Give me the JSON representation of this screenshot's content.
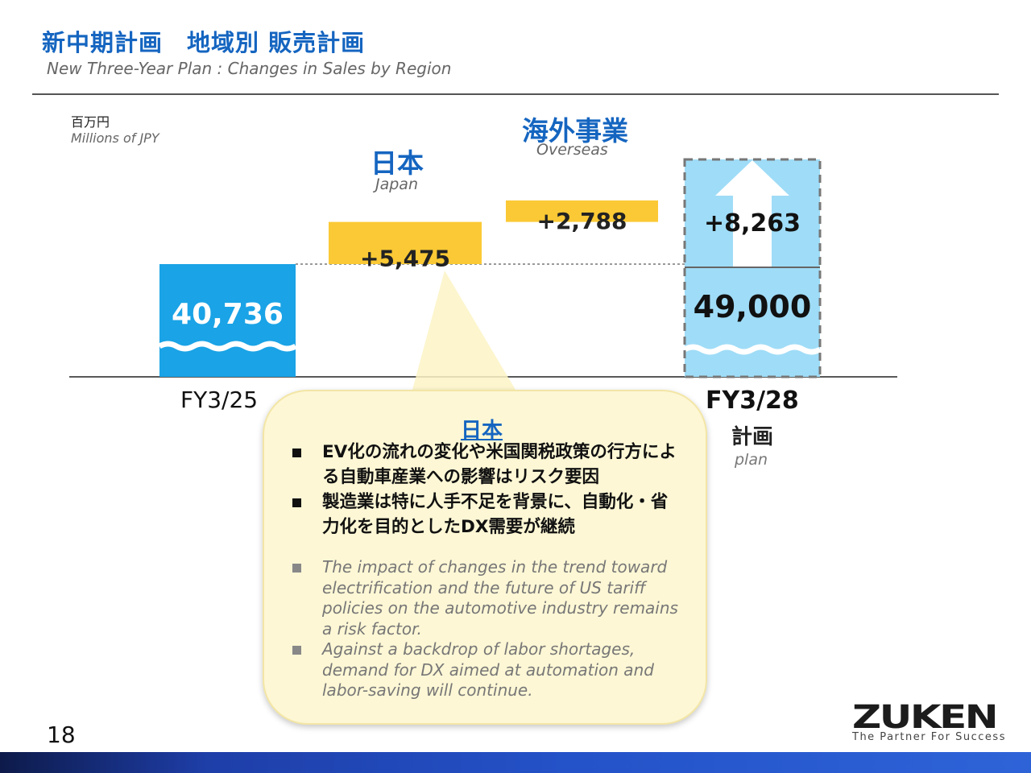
{
  "header": {
    "title": "新中期計画　地域別 販売計画",
    "subtitle": "New Three-Year Plan :  Changes in Sales by Region"
  },
  "units": {
    "ja": "百万円",
    "en": "Millions of JPY"
  },
  "colors": {
    "base_bar": "#1aa3e6",
    "increment": "#fbc935",
    "plan_bar": "#9fdcf7",
    "accent": "#1565c0"
  },
  "chart_data": {
    "type": "bar",
    "subtype": "waterfall",
    "categories": [
      "FY3/25",
      "Japan",
      "Overseas",
      "FY3/28"
    ],
    "values": [
      40736,
      5475,
      2788,
      49000
    ],
    "labels": [
      "40,736",
      "+5,475",
      "+2,788",
      "49,000"
    ],
    "total_increase": 8263,
    "total_increase_label": "+8,263",
    "regions": [
      {
        "ja": "日本",
        "en": "Japan"
      },
      {
        "ja": "海外事業",
        "en": "Overseas"
      }
    ],
    "plan_label_ja": "計画",
    "plan_label_en": "plan"
  },
  "callout": {
    "title": "日本",
    "bullets_ja": [
      "EV化の流れの変化や米国関税政策の行方による自動車産業への影響はリスク要因",
      "製造業は特に人手不足を背景に、自動化・省力化を目的としたDX需要が継続"
    ],
    "bullets_en": [
      "The impact of changes in the trend toward electrification and the future of US tariff policies on the automotive industry remains a risk factor.",
      "Against a backdrop of labor shortages, demand for DX aimed at automation and labor-saving will continue."
    ]
  },
  "footer": {
    "page": "18",
    "brand": "ZUKEN",
    "tagline": "The Partner For Success"
  }
}
